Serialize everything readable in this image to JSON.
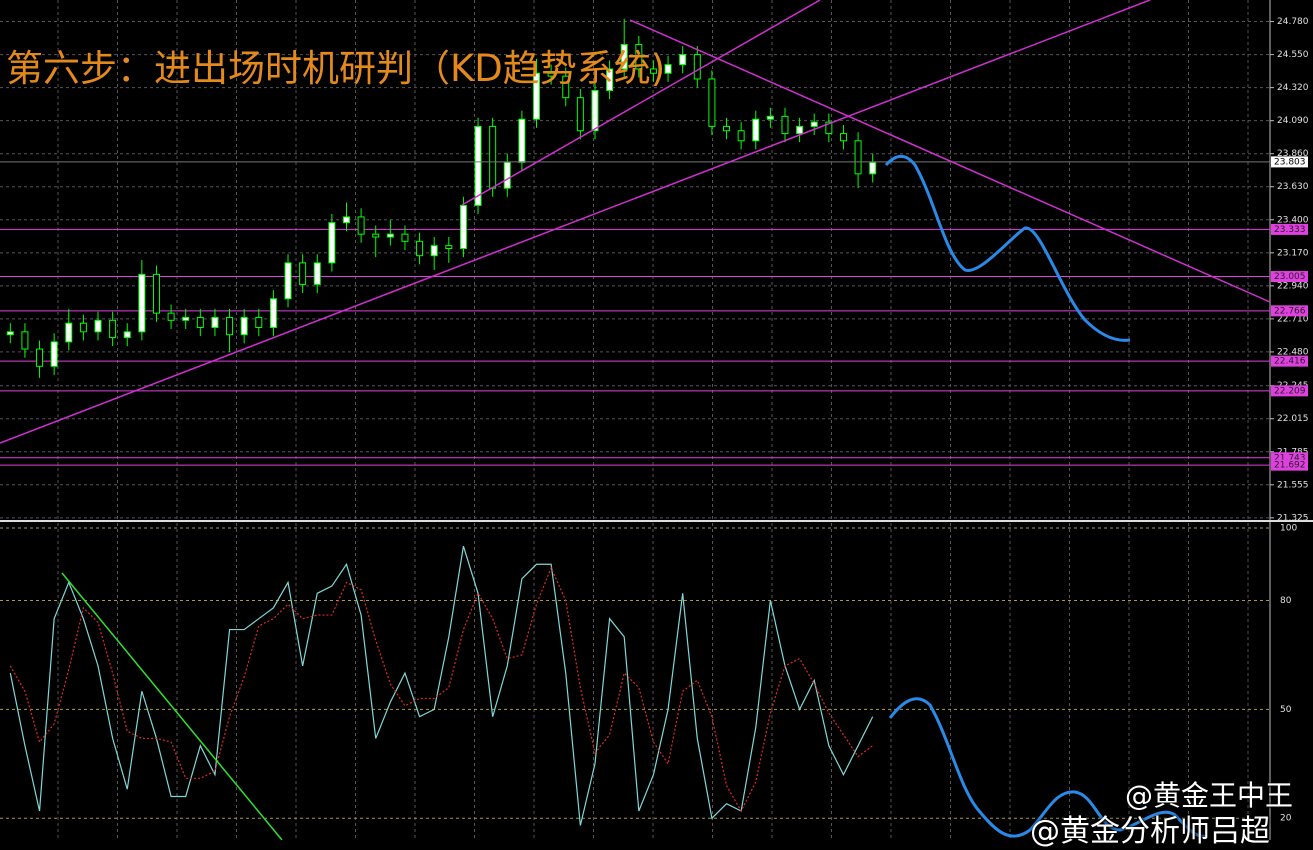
{
  "chart_data": [
    {
      "type": "candlestick",
      "title": "第六步：进出场时机研判（KD趋势系统)",
      "open": [
        22.6,
        22.62,
        22.5,
        22.38,
        22.55,
        22.68,
        22.62,
        22.7,
        22.58,
        22.62,
        23.02,
        22.75,
        22.7,
        22.72,
        22.65,
        22.72,
        22.6,
        22.72,
        22.65,
        22.85,
        23.1,
        22.95,
        23.1,
        23.38,
        23.42,
        23.3,
        23.28,
        23.3,
        23.25,
        23.15,
        23.22,
        23.2,
        23.5,
        24.05,
        23.62,
        23.8,
        24.1,
        24.42,
        24.4,
        24.25,
        24.02,
        24.3,
        24.45,
        24.62,
        24.45,
        24.42,
        24.48,
        24.55,
        24.38,
        24.05,
        24.02,
        23.95,
        24.1,
        24.12,
        24.0,
        24.05,
        24.08,
        24.0,
        23.95,
        23.72
      ],
      "high": [
        22.68,
        22.68,
        22.56,
        22.61,
        22.78,
        22.74,
        22.76,
        22.76,
        22.68,
        23.12,
        23.08,
        22.81,
        22.78,
        22.78,
        22.78,
        22.78,
        22.78,
        22.78,
        22.91,
        23.16,
        23.16,
        23.16,
        23.44,
        23.52,
        23.48,
        23.36,
        23.4,
        23.36,
        23.31,
        23.28,
        23.28,
        23.56,
        24.11,
        24.11,
        23.86,
        24.16,
        24.52,
        24.48,
        24.46,
        24.31,
        24.36,
        24.51,
        24.8,
        24.68,
        24.51,
        24.54,
        24.61,
        24.61,
        24.44,
        24.11,
        24.08,
        24.16,
        24.18,
        24.18,
        24.11,
        24.14,
        24.14,
        24.06,
        24.01,
        23.86
      ],
      "low": [
        22.54,
        22.44,
        22.3,
        22.32,
        22.49,
        22.56,
        22.56,
        22.52,
        22.52,
        22.56,
        22.69,
        22.64,
        22.64,
        22.59,
        22.59,
        22.48,
        22.54,
        22.59,
        22.59,
        22.79,
        22.89,
        22.89,
        23.04,
        23.32,
        23.24,
        23.14,
        23.22,
        23.19,
        23.09,
        23.05,
        23.1,
        23.14,
        23.44,
        23.56,
        23.56,
        23.74,
        24.04,
        24.34,
        24.19,
        23.96,
        23.96,
        24.24,
        24.39,
        24.39,
        24.36,
        24.36,
        24.42,
        24.32,
        23.99,
        23.96,
        23.89,
        23.89,
        24.04,
        23.94,
        23.94,
        23.99,
        23.94,
        23.89,
        23.62,
        23.66
      ],
      "close": [
        22.62,
        22.5,
        22.38,
        22.55,
        22.68,
        22.62,
        22.7,
        22.58,
        22.62,
        23.02,
        22.75,
        22.7,
        22.72,
        22.65,
        22.72,
        22.6,
        22.72,
        22.65,
        22.85,
        23.1,
        22.95,
        23.1,
        23.38,
        23.42,
        23.3,
        23.28,
        23.3,
        23.25,
        23.15,
        23.22,
        23.2,
        23.5,
        24.05,
        23.62,
        23.8,
        24.1,
        24.42,
        24.4,
        24.25,
        24.02,
        24.3,
        24.45,
        24.62,
        24.45,
        24.42,
        24.48,
        24.55,
        24.38,
        24.05,
        24.02,
        23.95,
        24.1,
        24.12,
        24.0,
        24.05,
        24.08,
        24.0,
        23.95,
        23.72,
        23.8
      ],
      "up_color": "#ffffff",
      "down_color": "#000000",
      "wick_color": "#00ff00",
      "ylim": [
        21.31,
        24.93
      ],
      "yticks": [
        {
          "value": 24.78,
          "label": "24.780"
        },
        {
          "value": 24.55,
          "label": "24.550"
        },
        {
          "value": 24.32,
          "label": "24.320"
        },
        {
          "value": 24.09,
          "label": "24.090"
        },
        {
          "value": 23.86,
          "label": "23.860"
        },
        {
          "value": 23.63,
          "label": "23.630"
        },
        {
          "value": 23.4,
          "label": "23.400"
        },
        {
          "value": 23.17,
          "label": "23.170"
        },
        {
          "value": 22.94,
          "label": "22.940"
        },
        {
          "value": 22.71,
          "label": "22.710"
        },
        {
          "value": 22.48,
          "label": "22.480"
        },
        22.245,
        22.015,
        21.785,
        21.555,
        21.325
      ],
      "grid": true,
      "last_price": 23.803,
      "levels": [
        23.333,
        23.005,
        22.766,
        22.416,
        22.209,
        21.743,
        21.692
      ],
      "level_color": "#e040e0"
    },
    {
      "type": "line",
      "series": [
        {
          "color": "#7fd8d8",
          "values": [
            60,
            40,
            22,
            75,
            85,
            75,
            62,
            42,
            28,
            55,
            42,
            26,
            26,
            40,
            32,
            72,
            72,
            75,
            78,
            85,
            62,
            82,
            84,
            90,
            76,
            42,
            52,
            60,
            48,
            50,
            70,
            95,
            82,
            48,
            62,
            86,
            90,
            90,
            60,
            18,
            35,
            75,
            70,
            22,
            32,
            50,
            82,
            42,
            20,
            24,
            22,
            45,
            80,
            62,
            50,
            58,
            40,
            32,
            40,
            48
          ]
        },
        {
          "color": "#e02a2a",
          "dashed": true,
          "values": [
            62,
            55,
            41,
            46,
            61,
            78,
            74,
            60,
            44,
            42,
            42,
            41,
            31,
            31,
            33,
            48,
            59,
            73,
            75,
            79,
            75,
            76,
            76,
            85,
            83,
            69,
            57,
            51,
            53,
            53,
            56,
            72,
            82,
            75,
            64,
            65,
            79,
            89,
            80,
            56,
            38,
            43,
            60,
            56,
            41,
            35,
            55,
            58,
            48,
            29,
            22,
            30,
            49,
            62,
            64,
            57,
            49,
            43,
            37,
            40
          ]
        }
      ],
      "ylim": [
        14,
        100
      ],
      "yticks": [
        100,
        80,
        50,
        20
      ],
      "grid": true,
      "annotations": [
        "@黄金王中王",
        "@黄金分析师吕超"
      ]
    }
  ]
}
